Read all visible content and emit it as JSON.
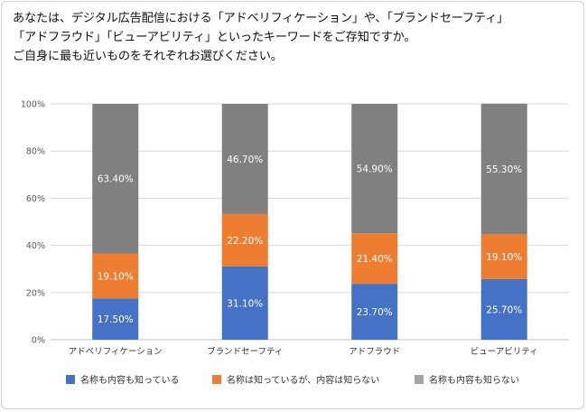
{
  "question": {
    "line1": "あなたは、デジタル広告配信における「アドベリフィケーション」や、「ブランドセーフティ」",
    "line2": "「アドフラウド」「ビューアビリティ」といったキーワードをご存知ですか。",
    "line3": "ご自身に最も近いものをそれぞれお選びください。"
  },
  "chart_data": {
    "type": "bar",
    "stacked": true,
    "categories": [
      "アドベリフィケーション",
      "ブランドセーフティ",
      "アドフラウド",
      "ビューアビリティ"
    ],
    "series": [
      {
        "name": "名称も内容も知っている",
        "values": [
          17.5,
          31.1,
          23.7,
          25.7
        ],
        "labels": [
          "17.50%",
          "31.10%",
          "23.70%",
          "25.70%"
        ],
        "color": "#4472c4"
      },
      {
        "name": "名称は知っているが、内容は知らない",
        "values": [
          19.1,
          22.2,
          21.4,
          19.1
        ],
        "labels": [
          "19.10%",
          "22.20%",
          "21.40%",
          "19.10%"
        ],
        "color": "#ed7d31"
      },
      {
        "name": "名称も内容も知らない",
        "values": [
          63.4,
          46.7,
          54.9,
          55.3
        ],
        "labels": [
          "63.40%",
          "46.70%",
          "54.90%",
          "55.30%"
        ],
        "color": "#808080"
      }
    ],
    "ylim": [
      0,
      100
    ],
    "yticks": [
      "0%",
      "20%",
      "40%",
      "60%",
      "80%",
      "100%"
    ],
    "grid": true,
    "legend_position": "bottom",
    "legend_colors": [
      "#4472c4",
      "#ed7d31",
      "#a5a5a5"
    ]
  }
}
